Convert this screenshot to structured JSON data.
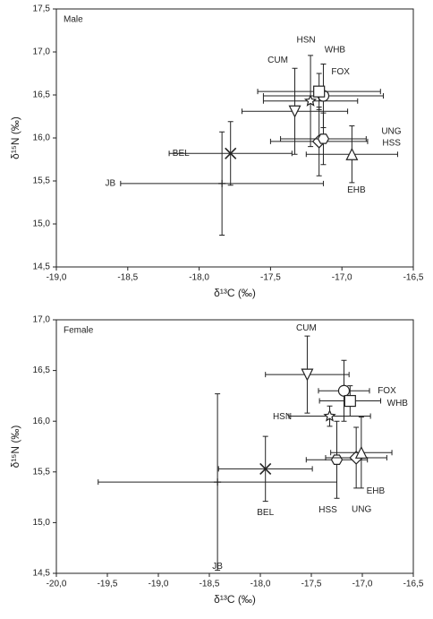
{
  "chart_data": [
    {
      "type": "scatter",
      "panel_label": "Male",
      "x_label": "δ¹³C (‰)",
      "y_label": "δ¹⁵N (‰)",
      "xlim": [
        -19,
        -16.5
      ],
      "ylim": [
        14.5,
        17.5
      ],
      "xticks": [
        {
          "value": -19,
          "label": "-19,0"
        },
        {
          "value": -18.5,
          "label": "-18,5"
        },
        {
          "value": -18,
          "label": "-18,0"
        },
        {
          "value": -17.5,
          "label": "-17,5"
        },
        {
          "value": -17,
          "label": "-17,0"
        },
        {
          "value": -16.5,
          "label": "-16,5"
        }
      ],
      "yticks": [
        {
          "value": 14.5,
          "label": "14,5"
        },
        {
          "value": 15,
          "label": "15,0"
        },
        {
          "value": 15.5,
          "label": "15,5"
        },
        {
          "value": 16,
          "label": "16,0"
        },
        {
          "value": 16.5,
          "label": "16,5"
        },
        {
          "value": 17,
          "label": "17,0"
        },
        {
          "value": 17.5,
          "label": "17,5"
        }
      ],
      "points": [
        {
          "label": "JB",
          "marker": "plus",
          "x": -17.84,
          "y": 15.47,
          "xerr": 0.71,
          "yerr": 0.6
        },
        {
          "label": "BEL",
          "marker": "cross",
          "x": -17.78,
          "y": 15.82,
          "xerr": 0.43,
          "yerr": 0.37
        },
        {
          "label": "CUM",
          "marker": "triangle-down",
          "x": -17.33,
          "y": 16.31,
          "xerr": 0.37,
          "yerr": 0.5
        },
        {
          "label": "HSN",
          "marker": "star",
          "x": -17.22,
          "y": 16.43,
          "xerr": 0.33,
          "yerr": 0.53
        },
        {
          "label": "WHB",
          "marker": "circle",
          "x": -17.13,
          "y": 16.49,
          "xerr": 0.42,
          "yerr": 0.37
        },
        {
          "label": "FOX",
          "marker": "square",
          "x": -17.16,
          "y": 16.54,
          "xerr": 0.43,
          "yerr": 0.21
        },
        {
          "label": "HSS",
          "marker": "diamond",
          "x": -17.16,
          "y": 15.96,
          "xerr": 0.34,
          "yerr": 0.4
        },
        {
          "label": "UNG",
          "marker": "hexagon",
          "x": -17.13,
          "y": 15.99,
          "xerr": 0.3,
          "yerr": 0.3
        },
        {
          "label": "EHB",
          "marker": "triangle-up",
          "x": -16.93,
          "y": 15.81,
          "xerr": 0.32,
          "yerr": 0.33
        }
      ]
    },
    {
      "type": "scatter",
      "panel_label": "Female",
      "x_label": "δ¹³C (‰)",
      "y_label": "δ¹⁵N (‰)",
      "xlim": [
        -20,
        -16.5
      ],
      "ylim": [
        14.5,
        17
      ],
      "xticks": [
        {
          "value": -20,
          "label": "-20,0"
        },
        {
          "value": -19.5,
          "label": "-19,5"
        },
        {
          "value": -19,
          "label": "-19,0"
        },
        {
          "value": -18.5,
          "label": "-18,5"
        },
        {
          "value": -18,
          "label": "-18,0"
        },
        {
          "value": -17.5,
          "label": "-17,5"
        },
        {
          "value": -17,
          "label": "-17,0"
        },
        {
          "value": -16.5,
          "label": "-16,5"
        }
      ],
      "yticks": [
        {
          "value": 14.5,
          "label": "14,5"
        },
        {
          "value": 15,
          "label": "15,0"
        },
        {
          "value": 15.5,
          "label": "15,5"
        },
        {
          "value": 16,
          "label": "16,0"
        },
        {
          "value": 16.5,
          "label": "16,5"
        },
        {
          "value": 17,
          "label": "17,0"
        }
      ],
      "points": [
        {
          "label": "JB",
          "marker": "plus",
          "x": -18.42,
          "y": 15.4,
          "xerr": 1.17,
          "yerr": 0.87
        },
        {
          "label": "BEL",
          "marker": "cross",
          "x": -17.95,
          "y": 15.53,
          "xerr": 0.46,
          "yerr": 0.32
        },
        {
          "label": "CUM",
          "marker": "triangle-down",
          "x": -17.54,
          "y": 16.46,
          "xerr": 0.41,
          "yerr": 0.38
        },
        {
          "label": "HSN",
          "marker": "star",
          "x": -17.32,
          "y": 16.05,
          "xerr": 0.4,
          "yerr": 0.1
        },
        {
          "label": "FOX",
          "marker": "circle",
          "x": -17.18,
          "y": 16.3,
          "xerr": 0.25,
          "yerr": 0.3
        },
        {
          "label": "WHB",
          "marker": "square",
          "x": -17.12,
          "y": 16.2,
          "xerr": 0.3,
          "yerr": 0.15
        },
        {
          "label": "HSS",
          "marker": "hexagon",
          "x": -17.25,
          "y": 15.62,
          "xerr": 0.3,
          "yerr": 0.38
        },
        {
          "label": "UNG",
          "marker": "diamond",
          "x": -17.06,
          "y": 15.64,
          "xerr": 0.3,
          "yerr": 0.3
        },
        {
          "label": "EHB",
          "marker": "triangle-up",
          "x": -17.01,
          "y": 15.69,
          "xerr": 0.3,
          "yerr": 0.35
        }
      ]
    }
  ]
}
